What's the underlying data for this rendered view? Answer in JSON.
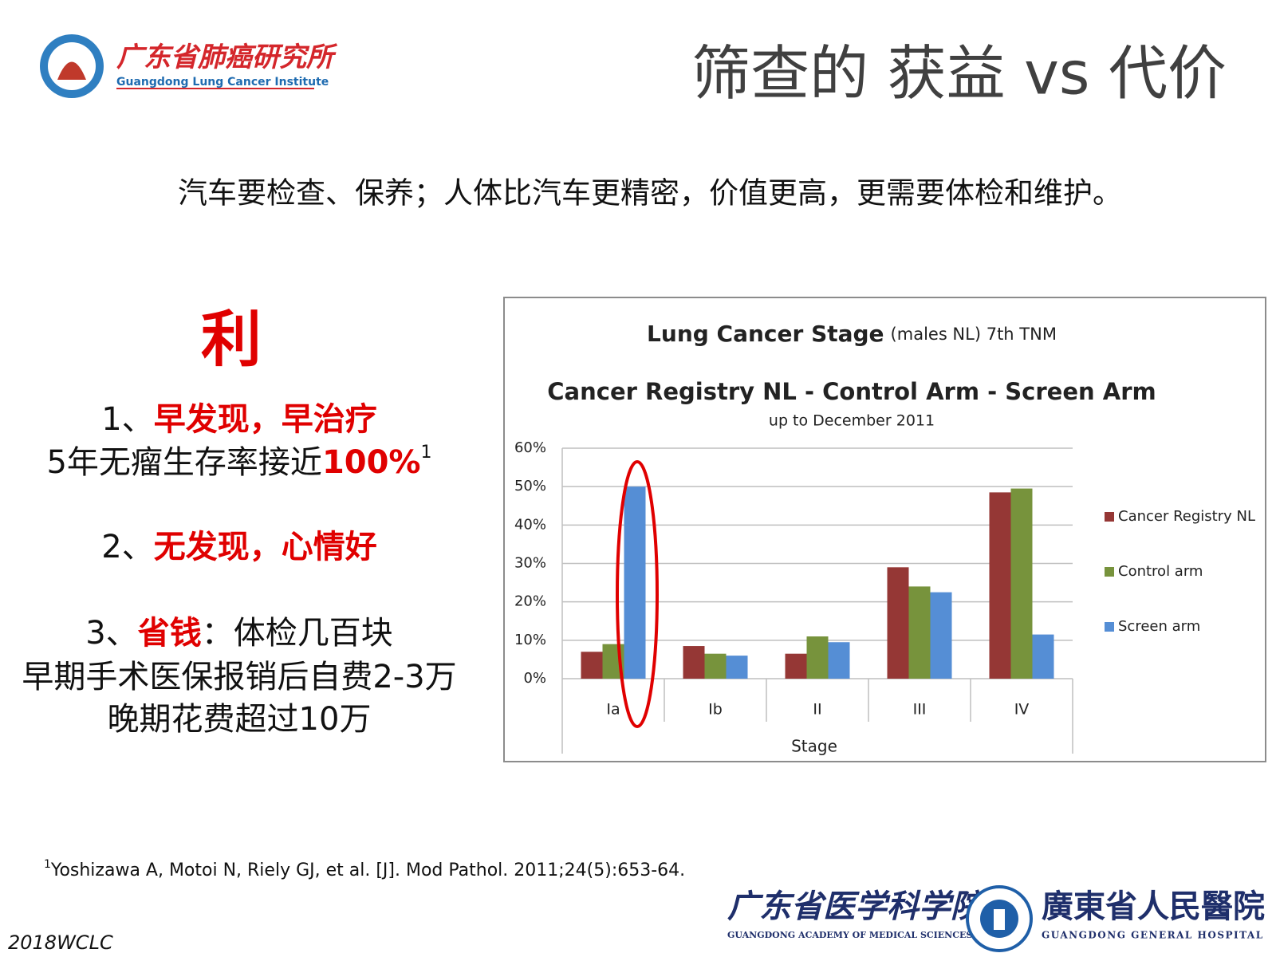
{
  "header": {
    "logo_cn": "广东省肺癌研究所",
    "logo_en": "Guangdong Lung Cancer Institute",
    "title": "筛查的 获益 vs 代价"
  },
  "intro": "汽车要检查、保养；人体比汽车更精密，价值更高，更需要体检和维护。",
  "benefits": {
    "heading": "利",
    "items": [
      {
        "number": "1、",
        "point": "早发现，早治疗",
        "detail": "5年无瘤生存率接近",
        "highlight": "100%",
        "note_ref": "1"
      },
      {
        "number": "2、",
        "point": "无发现，心情好"
      },
      {
        "number": "3、",
        "point": "省钱",
        "point_rest": "：体检几百块",
        "details": [
          "早期手术医保报销后自费2-3万",
          "晚期花费超过10万"
        ]
      }
    ]
  },
  "chart_data": {
    "type": "bar",
    "title": "Lung Cancer Stage",
    "title_note": "(males NL) 7th TNM",
    "subtitle": "Cancer Registry NL - Control Arm - Screen Arm",
    "caption": "up to December 2011",
    "xlabel": "Stage",
    "categories": [
      "Ia",
      "Ib",
      "II",
      "III",
      "IV"
    ],
    "series": [
      {
        "name": "Cancer Registry NL",
        "color": "#953735",
        "values": [
          7,
          8.5,
          6.5,
          29,
          48.5
        ]
      },
      {
        "name": "Control arm",
        "color": "#77933c",
        "values": [
          9,
          6.5,
          11,
          24,
          49.5
        ]
      },
      {
        "name": "Screen arm",
        "color": "#558ed5",
        "values": [
          50,
          6,
          9.5,
          22.5,
          11.5
        ]
      }
    ],
    "ylim": [
      0,
      60
    ],
    "yticks": [
      {
        "value": 0,
        "label": "0%"
      },
      {
        "value": 10,
        "label": "10%"
      },
      {
        "value": 20,
        "label": "20%"
      },
      {
        "value": 30,
        "label": "30%"
      },
      {
        "value": 40,
        "label": "40%"
      },
      {
        "value": 50,
        "label": "50%"
      },
      {
        "value": 60,
        "label": "60%"
      }
    ],
    "grid": true,
    "legend": "right"
  },
  "footnote": {
    "ref": "1",
    "text": "Yoshizawa A, Motoi N, Riely GJ, et al. [J]. Mod Pathol. 2011;24(5):653-64."
  },
  "footer": {
    "event": "2018WCLC",
    "academy_cn": "广东省医学科学院",
    "academy_en": "GUANGDONG ACADEMY OF MEDICAL SCIENCES",
    "hospital_cn": "廣東省人民醫院",
    "hospital_en": "GUANGDONG GENERAL HOSPITAL"
  }
}
